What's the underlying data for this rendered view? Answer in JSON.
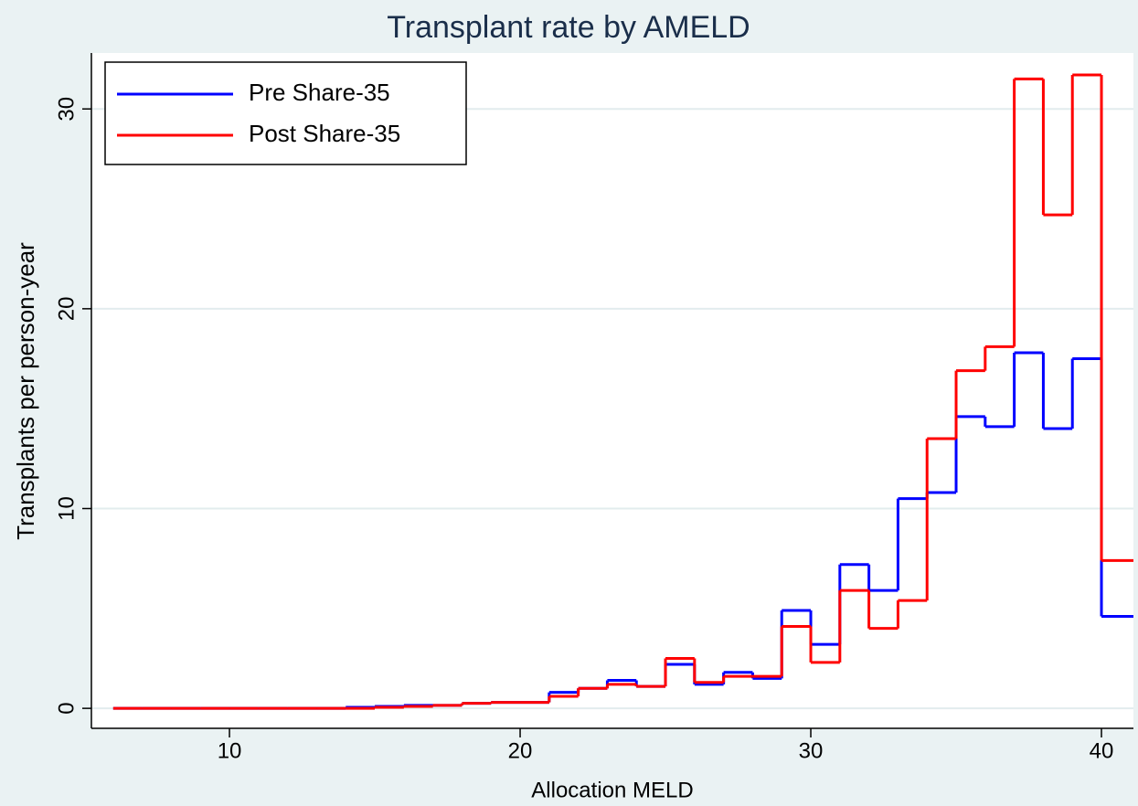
{
  "chart_data": {
    "type": "stairstep",
    "title": "Transplant rate by AMELD",
    "x_label": "Allocation MELD",
    "y_label": "Transplants per person-year",
    "x": [
      6,
      7,
      8,
      9,
      10,
      11,
      12,
      13,
      14,
      15,
      16,
      17,
      18,
      19,
      20,
      21,
      22,
      23,
      24,
      25,
      26,
      27,
      28,
      29,
      30,
      31,
      32,
      33,
      34,
      35,
      36,
      37,
      38,
      39,
      40
    ],
    "series": [
      {
        "name": "Pre Share-35",
        "color": "#0000ff",
        "values": [
          0,
          0,
          0,
          0,
          0,
          0,
          0,
          0,
          0.05,
          0.1,
          0.15,
          0.15,
          0.25,
          0.3,
          0.3,
          0.8,
          1.0,
          1.4,
          1.1,
          2.2,
          1.2,
          1.8,
          1.5,
          4.9,
          3.2,
          7.2,
          5.9,
          10.5,
          10.8,
          14.6,
          14.1,
          17.8,
          14.0,
          17.5,
          4.6
        ]
      },
      {
        "name": "Post Share-35",
        "color": "#ff0000",
        "values": [
          0,
          0,
          0,
          0,
          0,
          0,
          0,
          0,
          0,
          0.05,
          0.1,
          0.15,
          0.25,
          0.3,
          0.3,
          0.6,
          1.0,
          1.2,
          1.1,
          2.5,
          1.3,
          1.6,
          1.6,
          4.1,
          2.3,
          5.9,
          4.0,
          5.4,
          13.5,
          16.9,
          18.1,
          31.5,
          24.7,
          31.7,
          7.4
        ]
      }
    ],
    "xlim": [
      5.25,
      41.1
    ],
    "ylim": [
      -1,
      32.8
    ],
    "xticks": [
      10,
      20,
      30,
      40
    ],
    "yticks": [
      0,
      10,
      20,
      30
    ],
    "grid": true,
    "legend": "top-left"
  }
}
